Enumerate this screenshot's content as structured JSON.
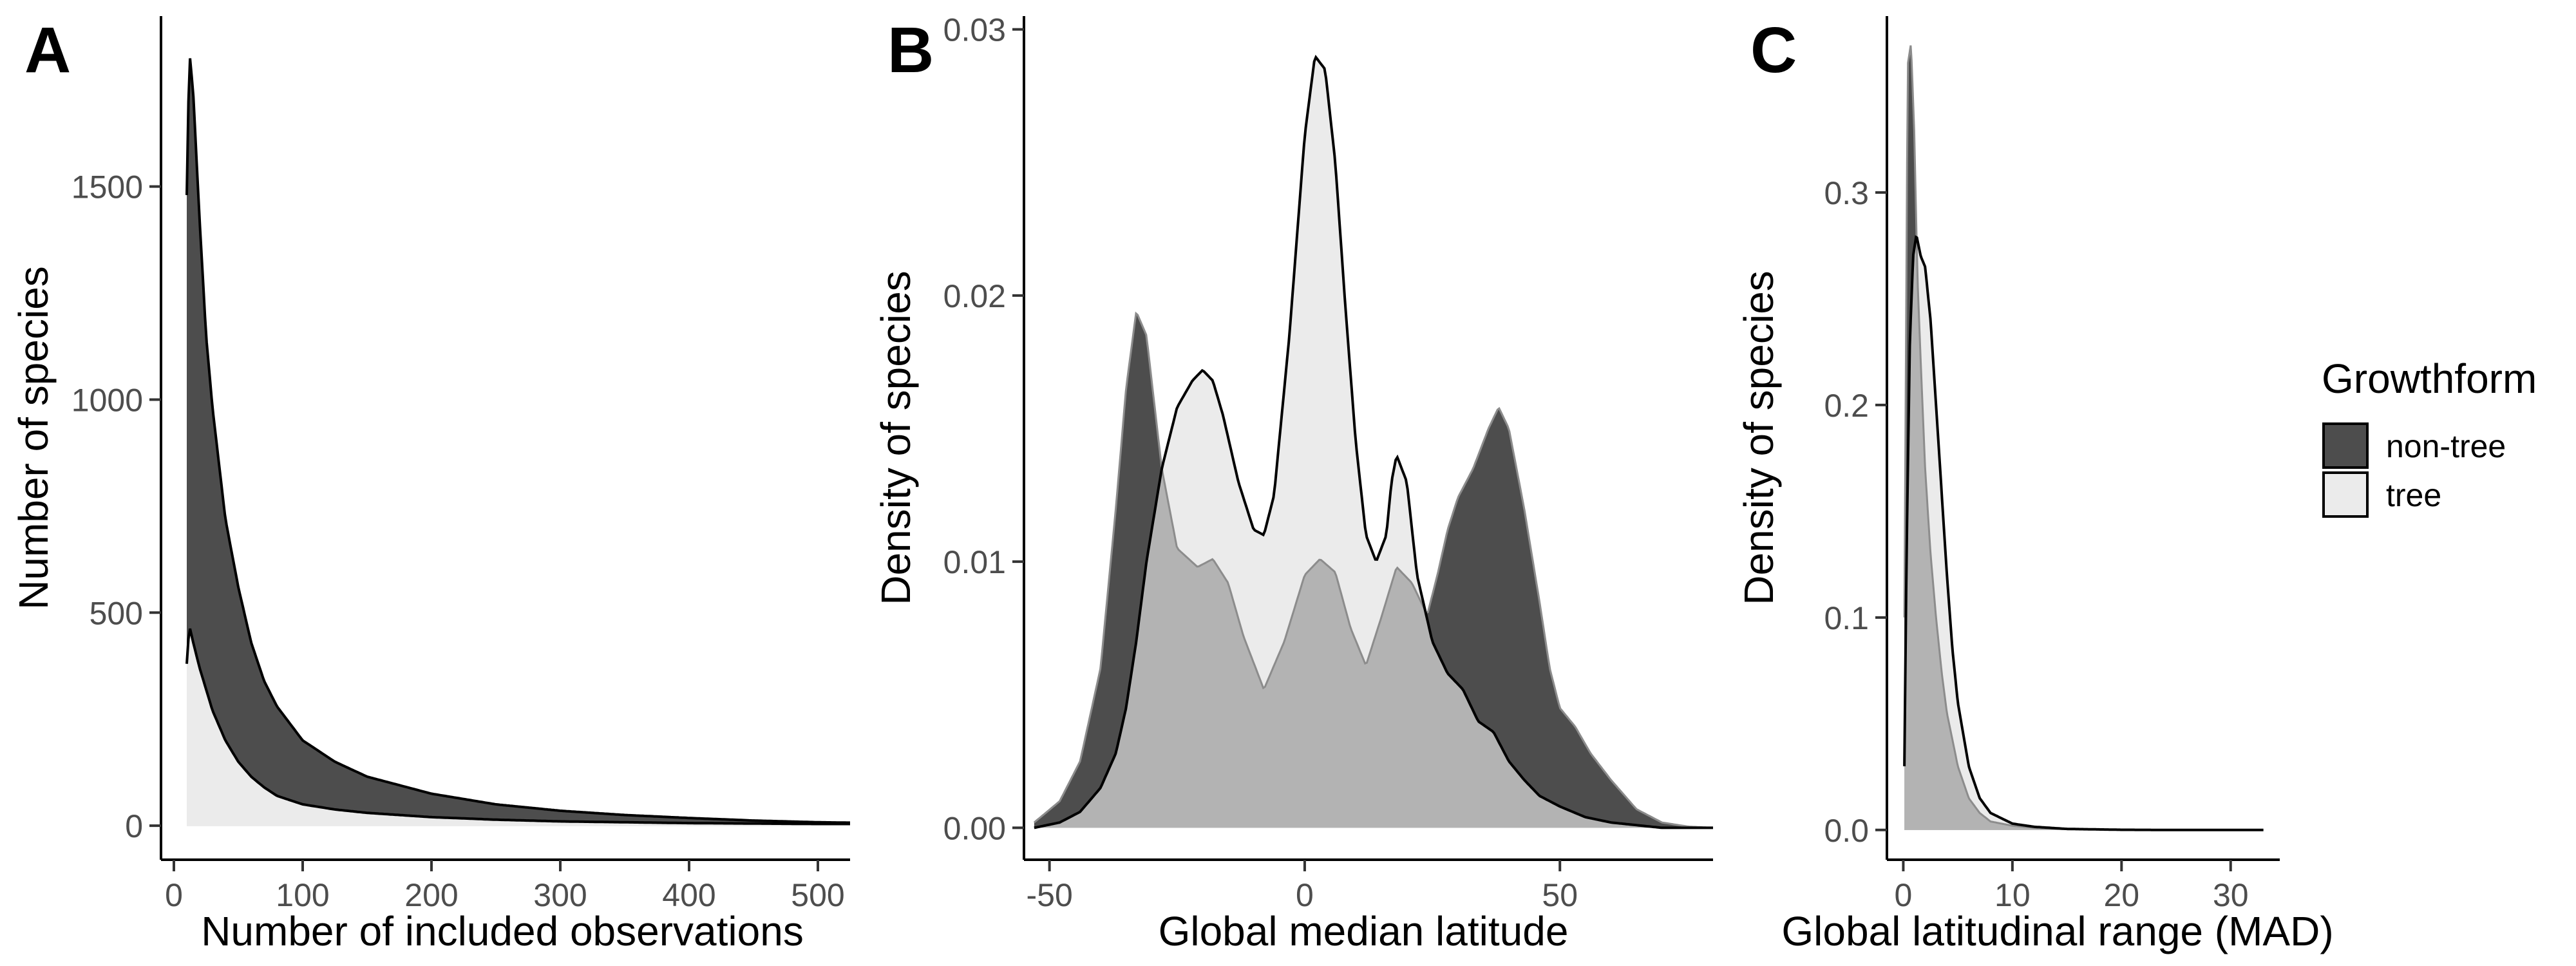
{
  "colors": {
    "non_tree_fill": "#4d4d4d",
    "tree_fill": "#ebebeb",
    "overlap_fill": "#b3b3b3",
    "outline": "#000000"
  },
  "legend": {
    "title": "Growthform",
    "placement": "right",
    "items": [
      {
        "label": "non-tree",
        "color": "#4d4d4d"
      },
      {
        "label": "tree",
        "color": "#ebebeb"
      }
    ]
  },
  "chart_data": [
    {
      "panel": "A",
      "type": "area",
      "title": "",
      "xlabel": "Number of included observations",
      "ylabel": "Number of species",
      "xlim": [
        -10,
        525
      ],
      "ylim": [
        -80,
        1900
      ],
      "xticks": [
        0,
        100,
        200,
        300,
        400,
        500
      ],
      "yticks": [
        0,
        500,
        1000,
        1500
      ],
      "grid": false,
      "series": [
        {
          "name": "non-tree",
          "x": [
            10,
            12,
            15,
            20,
            25,
            30,
            40,
            50,
            60,
            70,
            80,
            100,
            125,
            150,
            200,
            250,
            300,
            350,
            400,
            450,
            500,
            525
          ],
          "y": [
            1480,
            1820,
            1720,
            1420,
            1150,
            980,
            720,
            560,
            430,
            340,
            280,
            200,
            150,
            115,
            75,
            50,
            35,
            25,
            18,
            12,
            8,
            7
          ]
        },
        {
          "name": "tree",
          "x": [
            10,
            12,
            15,
            20,
            25,
            30,
            40,
            50,
            60,
            70,
            80,
            100,
            125,
            150,
            200,
            250,
            300,
            350,
            400,
            450,
            500,
            525
          ],
          "y": [
            380,
            470,
            430,
            370,
            320,
            270,
            200,
            150,
            115,
            90,
            70,
            50,
            38,
            30,
            20,
            14,
            10,
            8,
            6,
            5,
            4,
            4
          ]
        }
      ]
    },
    {
      "panel": "B",
      "type": "area",
      "title": "",
      "xlabel": "Global median latitude",
      "ylabel": "Density of species",
      "xlim": [
        -55,
        80
      ],
      "ylim": [
        -0.0012,
        0.0305
      ],
      "xticks": [
        -50,
        0,
        50
      ],
      "yticks": [
        0.0,
        0.01,
        0.02,
        0.03
      ],
      "ytick_labels": [
        "0.00",
        "0.01",
        "0.02",
        "0.03"
      ],
      "grid": false,
      "series": [
        {
          "name": "non-tree",
          "x": [
            -53,
            -48,
            -44,
            -40,
            -37,
            -35,
            -33,
            -31,
            -28,
            -25,
            -21,
            -18,
            -15,
            -12,
            -8,
            -4,
            0,
            3,
            6,
            9,
            12,
            15,
            18,
            21,
            24,
            26,
            28,
            30,
            33,
            36,
            38,
            40,
            43,
            46,
            48,
            50,
            53,
            56,
            60,
            65,
            70,
            75,
            80
          ],
          "y": [
            0.0002,
            0.001,
            0.0025,
            0.006,
            0.012,
            0.0165,
            0.0194,
            0.0185,
            0.0135,
            0.0105,
            0.0098,
            0.0101,
            0.0092,
            0.0072,
            0.0052,
            0.007,
            0.0095,
            0.0101,
            0.0096,
            0.0075,
            0.0061,
            0.0079,
            0.0098,
            0.0092,
            0.008,
            0.0095,
            0.0112,
            0.0124,
            0.0135,
            0.015,
            0.0158,
            0.015,
            0.012,
            0.0085,
            0.006,
            0.0045,
            0.0038,
            0.0028,
            0.0018,
            0.0007,
            0.0002,
            5e-05,
            0.0
          ]
        },
        {
          "name": "tree",
          "x": [
            -53,
            -48,
            -44,
            -40,
            -37,
            -35,
            -33,
            -31,
            -28,
            -25,
            -22,
            -20,
            -18,
            -16,
            -13,
            -10,
            -8,
            -6,
            -3,
            0,
            2,
            4,
            6,
            8,
            10,
            12,
            14,
            16,
            17,
            18,
            20,
            22,
            25,
            28,
            31,
            34,
            37,
            40,
            43,
            46,
            50,
            55,
            60,
            65,
            70,
            80
          ],
          "y": [
            0.0,
            0.0002,
            0.0006,
            0.0015,
            0.0028,
            0.0045,
            0.007,
            0.01,
            0.0135,
            0.0158,
            0.0168,
            0.0172,
            0.0168,
            0.0155,
            0.013,
            0.0112,
            0.011,
            0.0125,
            0.0185,
            0.026,
            0.029,
            0.0285,
            0.025,
            0.0195,
            0.0145,
            0.011,
            0.01,
            0.011,
            0.013,
            0.014,
            0.013,
            0.0095,
            0.007,
            0.0058,
            0.0052,
            0.004,
            0.0036,
            0.0025,
            0.0018,
            0.0012,
            0.0008,
            0.0004,
            0.0002,
            0.0001,
            0.0,
            0.0
          ]
        }
      ]
    },
    {
      "panel": "C",
      "type": "area",
      "title": "",
      "xlabel": "Global latitudinal range (MAD)",
      "ylabel": "Density of species",
      "xlim": [
        -1.5,
        34.5
      ],
      "ylim": [
        -0.014,
        0.383
      ],
      "xticks": [
        0,
        10,
        20,
        30
      ],
      "yticks": [
        0.0,
        0.1,
        0.2,
        0.3
      ],
      "ytick_labels": [
        "0.0",
        "0.1",
        "0.2",
        "0.3"
      ],
      "grid": false,
      "series": [
        {
          "name": "non-tree",
          "x": [
            0.1,
            0.4,
            0.7,
            1.0,
            1.3,
            1.6,
            2.0,
            2.5,
            3.0,
            3.5,
            4.0,
            5.0,
            6.0,
            7.0,
            8.0,
            10.0,
            12.0,
            15.0,
            20.0,
            25.0,
            33.0
          ],
          "y": [
            0.1,
            0.36,
            0.37,
            0.33,
            0.26,
            0.22,
            0.17,
            0.13,
            0.1,
            0.075,
            0.055,
            0.03,
            0.015,
            0.008,
            0.004,
            0.002,
            0.001,
            0.0004,
            0.0001,
            0.0,
            0.0
          ]
        },
        {
          "name": "tree",
          "x": [
            0.1,
            0.3,
            0.6,
            0.9,
            1.2,
            1.6,
            2.0,
            2.5,
            3.0,
            3.5,
            4.0,
            4.5,
            5.0,
            6.0,
            7.0,
            8.0,
            10.0,
            12.0,
            15.0,
            20.0,
            25.0,
            33.0
          ],
          "y": [
            0.03,
            0.13,
            0.23,
            0.27,
            0.28,
            0.27,
            0.265,
            0.24,
            0.2,
            0.16,
            0.12,
            0.085,
            0.06,
            0.03,
            0.015,
            0.008,
            0.003,
            0.0015,
            0.0005,
            0.0001,
            0.0,
            0.0
          ]
        }
      ]
    }
  ],
  "panels": [
    {
      "letter": "A",
      "xlabel": "Number of included observations",
      "ylabel": "Number of species",
      "xtick_labels": [
        "0",
        "100",
        "200",
        "300",
        "400",
        "500"
      ],
      "ytick_labels": [
        "0",
        "500",
        "1000",
        "1500"
      ]
    },
    {
      "letter": "B",
      "xlabel": "Global median latitude",
      "ylabel": "Density of species",
      "xtick_labels": [
        "-50",
        "0",
        "50"
      ],
      "ytick_labels": [
        "0.00",
        "0.01",
        "0.02",
        "0.03"
      ]
    },
    {
      "letter": "C",
      "xlabel": "Global latitudinal range (MAD)",
      "ylabel": "Density of species",
      "xtick_labels": [
        "0",
        "10",
        "20",
        "30"
      ],
      "ytick_labels": [
        "0.0",
        "0.1",
        "0.2",
        "0.3"
      ]
    }
  ]
}
